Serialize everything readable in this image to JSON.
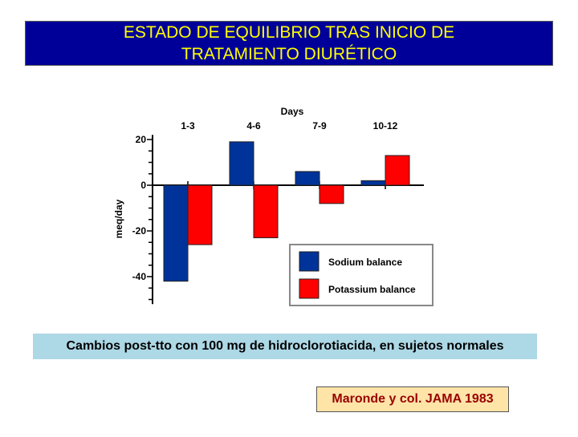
{
  "slide": {
    "title_line1": "ESTADO DE EQUILIBRIO TRAS INICIO DE",
    "title_line2": "TRATAMIENTO DIURÉTICO",
    "caption": "Cambios post-tto con 100 mg de hidroclorotiacida, en sujetos normales",
    "source": "Maronde y col. JAMA 1983"
  },
  "colors": {
    "title_bg": "#000099",
    "title_text": "#ffff00",
    "sodium": "#003399",
    "potassium": "#ff0000",
    "caption_bg": "#add8e6",
    "source_bg": "#ffe4a8",
    "source_text": "#990000"
  },
  "chart_data": {
    "type": "bar",
    "title": "",
    "xlabel": "Days",
    "ylabel": "meq/day",
    "categories": [
      "1-3",
      "4-6",
      "7-9",
      "10-12"
    ],
    "series": [
      {
        "name": "Sodium balance",
        "color": "#003399",
        "values": [
          -42,
          19,
          6,
          2
        ]
      },
      {
        "name": "Potassium balance",
        "color": "#ff0000",
        "values": [
          -26,
          -23,
          -8,
          13
        ]
      }
    ],
    "yticks": [
      "20",
      "0",
      "-20",
      "-40"
    ],
    "ytick_values": [
      20,
      0,
      -20,
      -40
    ],
    "ylim": [
      -52,
      22
    ],
    "x_axis_position": "top",
    "legend": "bottom-right",
    "grid": false
  }
}
